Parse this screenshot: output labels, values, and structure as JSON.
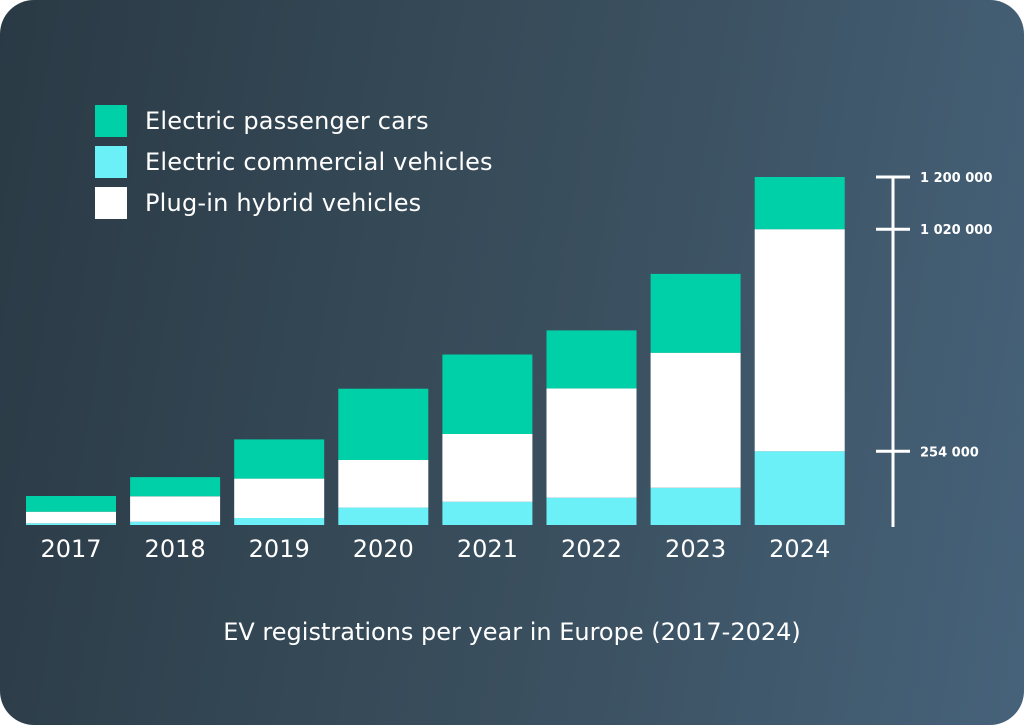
{
  "colors": {
    "passenger": "#00d0a8",
    "commercial": "#6cf0f8",
    "hybrid": "#ffffff"
  },
  "chart_data": {
    "type": "bar",
    "stacked": true,
    "title": "EV registrations per year in Europe (2017-2024)",
    "categories": [
      "2017",
      "2018",
      "2019",
      "2020",
      "2021",
      "2022",
      "2023",
      "2024"
    ],
    "series": [
      {
        "name": "Electric commercial vehicles",
        "color": "#6cf0f8",
        "values": [
          6000,
          11000,
          24000,
          60000,
          80000,
          94000,
          128000,
          254000
        ]
      },
      {
        "name": "Plug-in hybrid vehicles",
        "color": "#ffffff",
        "values": [
          40000,
          88000,
          136000,
          164000,
          234000,
          377000,
          466000,
          766000
        ]
      },
      {
        "name": "Electric passenger cars",
        "color": "#00d0a8",
        "values": [
          54000,
          66000,
          135000,
          246000,
          274000,
          200000,
          272000,
          180000
        ]
      }
    ],
    "axis_ticks": [
      {
        "value": 1200000,
        "label": "1 200 000"
      },
      {
        "value": 1020000,
        "label": "1 020 000"
      },
      {
        "value": 254000,
        "label": "254 000"
      }
    ],
    "ylim": [
      0,
      1200000
    ],
    "legend_position": "top-left",
    "grid": false
  }
}
